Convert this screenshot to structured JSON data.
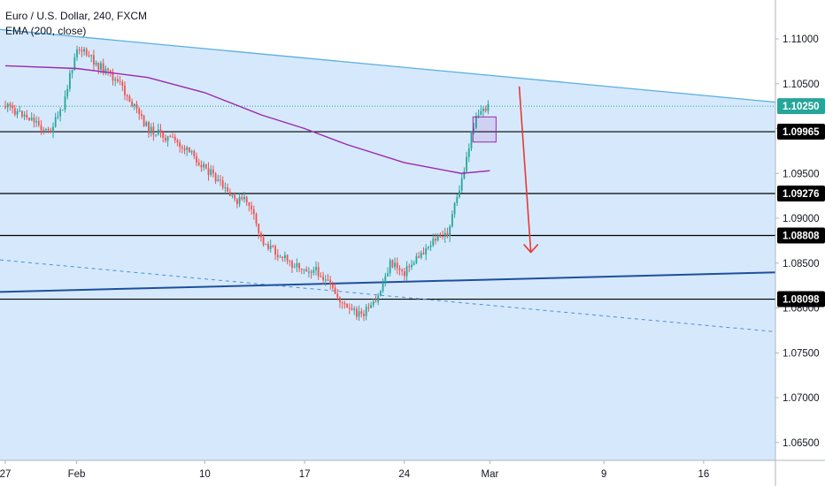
{
  "legend": {
    "symbol_line": "Euro / U.S. Dollar, 240, FXCM",
    "indicator_line": "EMA (200, close)"
  },
  "colors": {
    "background": "#ffffff",
    "channel_fill": "#cfe5fb",
    "channel_line": "#5aaee0",
    "up_candle": "#26a69a",
    "down_candle": "#ef5350",
    "ema": "#9c27b0",
    "support_line": "#000000",
    "trend_line": "#1e4f9c",
    "dashed_trend": "#4a90d9",
    "current_price_line": "#26a69a",
    "arrow": "#e53935",
    "box": "#9c27b0"
  },
  "chart_data": {
    "type": "candlestick",
    "symbol": "Euro / U.S. Dollar, 240, FXCM",
    "indicator": "EMA (200, close)",
    "x_tick_labels": [
      "27",
      "Feb",
      "10",
      "17",
      "24",
      "Mar",
      "9",
      "16"
    ],
    "y_tick_labels": [
      "1.11000",
      "1.10500",
      "1.10000",
      "1.09500",
      "1.09000",
      "1.08500",
      "1.08000",
      "1.07500",
      "1.07000",
      "1.06500"
    ],
    "ylim": [
      1.0625,
      1.1125
    ],
    "current_price": "1.10250",
    "horizontal_levels": [
      "1.09965",
      "1.09276",
      "1.08808",
      "1.08098"
    ],
    "price_path": [
      {
        "date": "2020-01-27",
        "price": 1.1025
      },
      {
        "date": "2020-01-29",
        "price": 1.101
      },
      {
        "date": "2020-01-30",
        "price": 1.0995
      },
      {
        "date": "2020-01-31",
        "price": 1.102
      },
      {
        "date": "2020-02-01",
        "price": 1.1092
      },
      {
        "date": "2020-02-04",
        "price": 1.105
      },
      {
        "date": "2020-02-06",
        "price": 1.1
      },
      {
        "date": "2020-02-08",
        "price": 1.0985
      },
      {
        "date": "2020-02-10",
        "price": 1.0958
      },
      {
        "date": "2020-02-12",
        "price": 1.092
      },
      {
        "date": "2020-02-13",
        "price": 1.092
      },
      {
        "date": "2020-02-14",
        "price": 1.0875
      },
      {
        "date": "2020-02-16",
        "price": 1.085
      },
      {
        "date": "2020-02-18",
        "price": 1.084
      },
      {
        "date": "2020-02-20",
        "price": 1.0798
      },
      {
        "date": "2020-02-21",
        "price": 1.0792
      },
      {
        "date": "2020-02-22",
        "price": 1.0805
      },
      {
        "date": "2020-02-23",
        "price": 1.085
      },
      {
        "date": "2020-02-24",
        "price": 1.084
      },
      {
        "date": "2020-02-26",
        "price": 1.0875
      },
      {
        "date": "2020-02-27",
        "price": 1.0882
      },
      {
        "date": "2020-02-28",
        "price": 1.094
      },
      {
        "date": "2020-02-29",
        "price": 1.1015
      },
      {
        "date": "2020-03-01",
        "price": 1.1025
      }
    ],
    "ema_path": [
      {
        "date": "2020-01-27",
        "price": 1.107
      },
      {
        "date": "2020-02-01",
        "price": 1.1067
      },
      {
        "date": "2020-02-06",
        "price": 1.1057
      },
      {
        "date": "2020-02-10",
        "price": 1.104
      },
      {
        "date": "2020-02-14",
        "price": 1.1015
      },
      {
        "date": "2020-02-17",
        "price": 1.1
      },
      {
        "date": "2020-02-20",
        "price": 1.0982
      },
      {
        "date": "2020-02-24",
        "price": 1.0962
      },
      {
        "date": "2020-02-28",
        "price": 1.095
      },
      {
        "date": "2020-03-01",
        "price": 1.0953
      }
    ],
    "channel_top": [
      {
        "date": "2020-01-27",
        "price": 1.111
      },
      {
        "date": "2020-03-22",
        "price": 1.1028
      }
    ],
    "channel_bottom_dashed": [
      {
        "date": "2020-01-27",
        "price": 1.0853
      },
      {
        "date": "2020-03-22",
        "price": 1.0772
      }
    ],
    "ascending_trendline": [
      {
        "date": "2020-01-27",
        "price": 1.0818
      },
      {
        "date": "2020-03-22",
        "price": 1.084
      }
    ],
    "projection_arrow": [
      {
        "date": "2020-03-03",
        "price": 1.1047
      },
      {
        "date": "2020-03-04",
        "price": 1.0862
      }
    ],
    "highlight_box": [
      {
        "date": "2020-02-29",
        "price": 1.1013
      },
      {
        "date": "2020-03-01",
        "price": 1.0985
      }
    ],
    "grid": false,
    "legend_position": "top-left"
  }
}
